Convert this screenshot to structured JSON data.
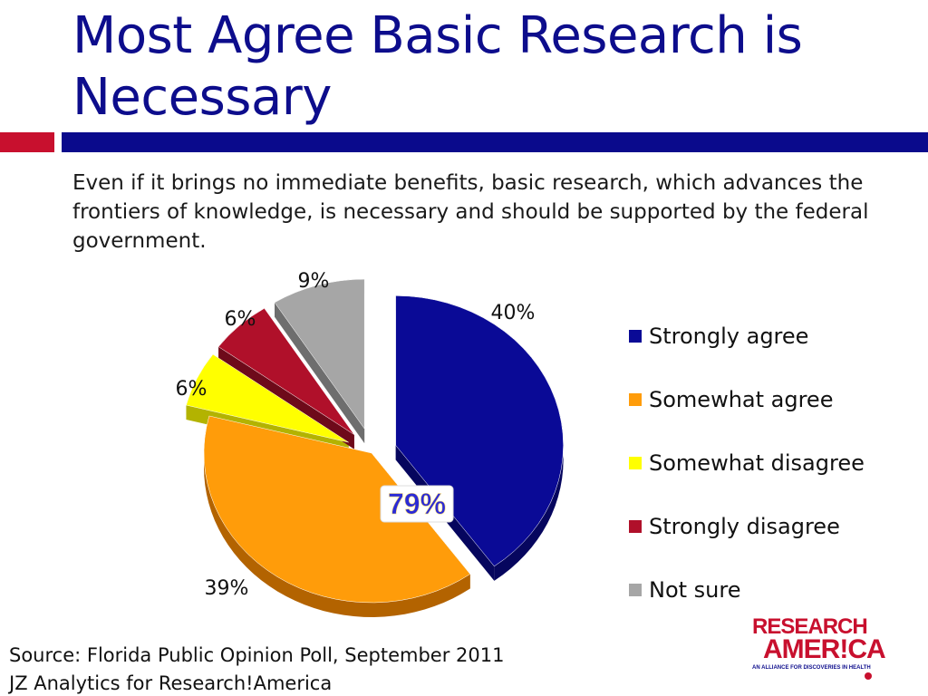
{
  "slide": {
    "title": "Most Agree Basic Research is Necessary",
    "question": "Even if it brings no immediate benefits, basic research, which advances the frontiers of knowledge, is necessary and should be supported by the federal government.",
    "source_line1": "Source: Florida Public Opinion Poll, September 2011",
    "source_line2": "JZ Analytics for Research!America",
    "logo_text_1": "RESEARCH",
    "logo_text_2": "AMER!CA",
    "logo_tagline": "AN ALLIANCE FOR DISCOVERIES IN HEALTH"
  },
  "colors": {
    "title": "#0d0d8c",
    "accent_red": "#c8102e",
    "accent_blue": "#0a0a8c"
  },
  "chart_data": {
    "type": "pie",
    "title": "",
    "slices": [
      {
        "label": "Strongly agree",
        "value": 40,
        "display": "40%",
        "color": "#0a0a96",
        "side": "#06065e",
        "exploded": true
      },
      {
        "label": "Somewhat agree",
        "value": 39,
        "display": "39%",
        "color": "#ff9c0a",
        "side": "#b36300",
        "exploded": false
      },
      {
        "label": "Somewhat disagree",
        "value": 6,
        "display": "6%",
        "color": "#ffff00",
        "side": "#b3b300",
        "exploded": true
      },
      {
        "label": "Strongly disagree",
        "value": 6,
        "display": "6%",
        "color": "#b0102a",
        "side": "#6e0a1a",
        "exploded": true
      },
      {
        "label": "Not sure",
        "value": 9,
        "display": "9%",
        "color": "#a6a6a6",
        "side": "#6e6e6e",
        "exploded": true
      }
    ],
    "center_callout": "79%",
    "legend_position": "right",
    "three_d": true
  }
}
